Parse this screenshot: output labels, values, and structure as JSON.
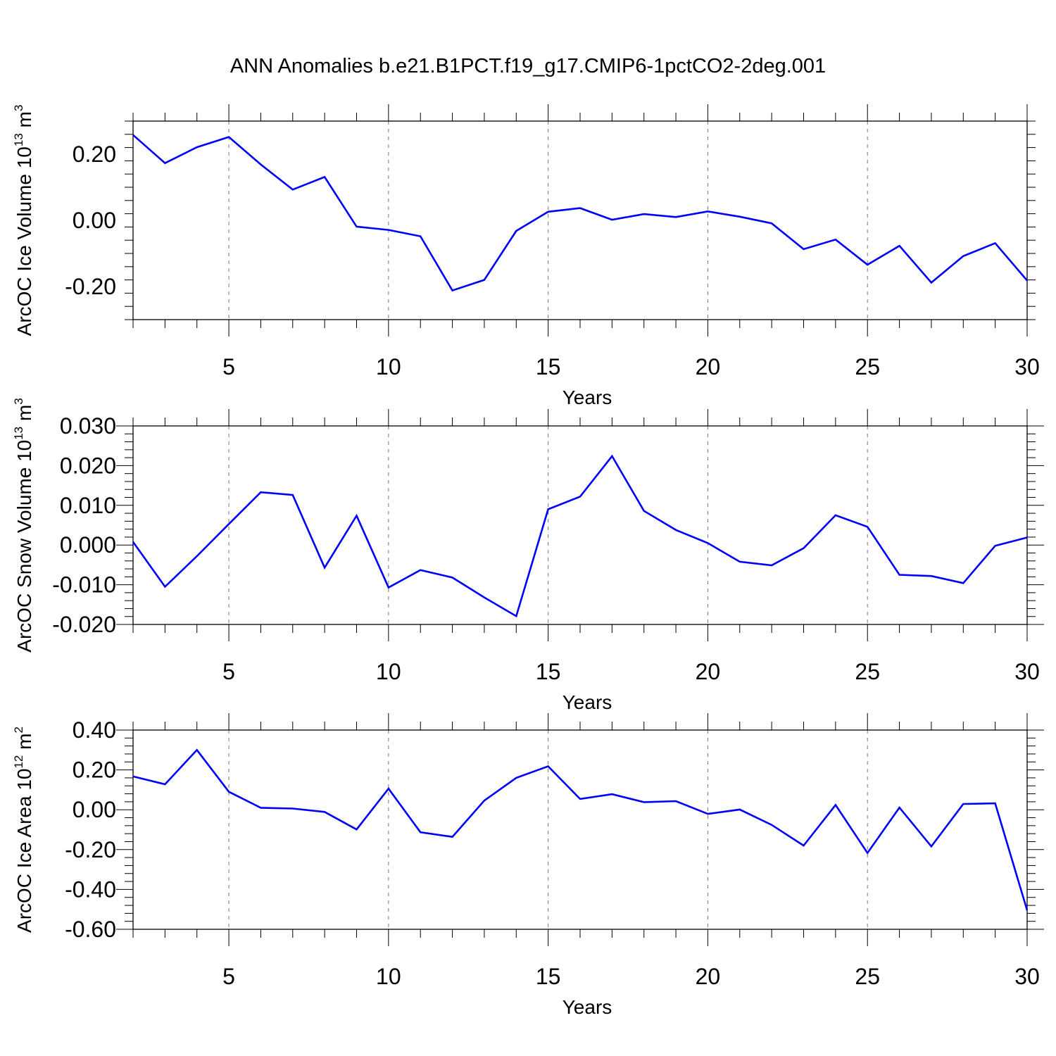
{
  "title": "ANN Anomalies b.e21.B1PCT.f19_g17.CMIP6-1pctCO2-2deg.001",
  "chart_data": [
    {
      "type": "line",
      "xlabel": "Years",
      "ylabel": {
        "text": "ArcOC Ice Volume 10",
        "exp": "13",
        "unit": " m",
        "unit_exp": "3"
      },
      "xlim": [
        2,
        30
      ],
      "ylim": [
        -0.3,
        0.3
      ],
      "xticks": [
        5,
        10,
        15,
        20,
        25,
        30
      ],
      "yticks": [
        -0.2,
        0.0,
        0.2
      ],
      "ytick_labels": [
        "-0.20",
        "0.00",
        "0.20"
      ],
      "ytick_decimals": 2,
      "grid_x": [
        5,
        10,
        15,
        20,
        25
      ],
      "line_color": "#0000ff",
      "x": [
        2,
        3,
        4,
        5,
        6,
        7,
        8,
        9,
        10,
        11,
        12,
        13,
        14,
        15,
        16,
        17,
        18,
        19,
        20,
        21,
        22,
        23,
        24,
        25,
        26,
        27,
        28,
        29,
        30
      ],
      "values": [
        0.258,
        0.173,
        0.221,
        0.252,
        0.169,
        0.093,
        0.131,
        -0.019,
        -0.029,
        -0.048,
        -0.212,
        -0.18,
        -0.032,
        0.026,
        0.037,
        0.002,
        0.019,
        0.01,
        0.027,
        0.011,
        -0.009,
        -0.087,
        -0.058,
        -0.134,
        -0.077,
        -0.188,
        -0.108,
        -0.069,
        -0.182
      ]
    },
    {
      "type": "line",
      "xlabel": "Years",
      "ylabel": {
        "text": "ArcOC Snow Volume 10",
        "exp": "13",
        "unit": " m",
        "unit_exp": "3"
      },
      "xlim": [
        2,
        30
      ],
      "ylim": [
        -0.02,
        0.03
      ],
      "xticks": [
        5,
        10,
        15,
        20,
        25,
        30
      ],
      "yticks": [
        -0.02,
        -0.01,
        0.0,
        0.01,
        0.02,
        0.03
      ],
      "ytick_labels": [
        "-0.020",
        "-0.010",
        "0.000",
        "0.010",
        "0.020",
        "0.030"
      ],
      "ytick_decimals": 3,
      "grid_x": [
        5,
        10,
        15,
        20,
        25
      ],
      "line_color": "#0000ff",
      "x": [
        2,
        3,
        4,
        5,
        6,
        7,
        8,
        9,
        10,
        11,
        12,
        13,
        14,
        15,
        16,
        17,
        18,
        19,
        20,
        21,
        22,
        23,
        24,
        25,
        26,
        27,
        28,
        29,
        30
      ],
      "values": [
        0.0008,
        -0.0105,
        -0.0028,
        0.0053,
        0.0133,
        0.0126,
        -0.0057,
        0.0074,
        -0.0107,
        -0.0063,
        -0.0082,
        -0.0132,
        -0.0179,
        0.009,
        0.0122,
        0.0224,
        0.0086,
        0.0038,
        0.0005,
        -0.0042,
        -0.0051,
        -0.0008,
        0.0075,
        0.0046,
        -0.0075,
        -0.0078,
        -0.0096,
        -0.0002,
        0.0019
      ]
    },
    {
      "type": "line",
      "xlabel": "Years",
      "ylabel": {
        "text": "ArcOC Ice Area 10",
        "exp": "12",
        "unit": " m",
        "unit_exp": "2"
      },
      "xlim": [
        2,
        30
      ],
      "ylim": [
        -0.6,
        0.4
      ],
      "xticks": [
        5,
        10,
        15,
        20,
        25,
        30
      ],
      "yticks": [
        -0.6,
        -0.4,
        -0.2,
        0.0,
        0.2,
        0.4
      ],
      "ytick_labels": [
        "-0.60",
        "-0.40",
        "-0.20",
        "0.00",
        "0.20",
        "0.40"
      ],
      "ytick_decimals": 2,
      "grid_x": [
        5,
        10,
        15,
        20,
        25
      ],
      "line_color": "#0000ff",
      "x": [
        2,
        3,
        4,
        5,
        6,
        7,
        8,
        9,
        10,
        11,
        12,
        13,
        14,
        15,
        16,
        17,
        18,
        19,
        20,
        21,
        22,
        23,
        24,
        25,
        26,
        27,
        28,
        29,
        30
      ],
      "values": [
        0.167,
        0.128,
        0.3,
        0.09,
        0.01,
        0.006,
        -0.011,
        -0.099,
        0.106,
        -0.113,
        -0.136,
        0.046,
        0.16,
        0.218,
        0.054,
        0.078,
        0.038,
        0.043,
        -0.021,
        0.001,
        -0.076,
        -0.18,
        0.024,
        -0.217,
        0.011,
        -0.184,
        0.029,
        0.032,
        -0.505
      ]
    }
  ]
}
